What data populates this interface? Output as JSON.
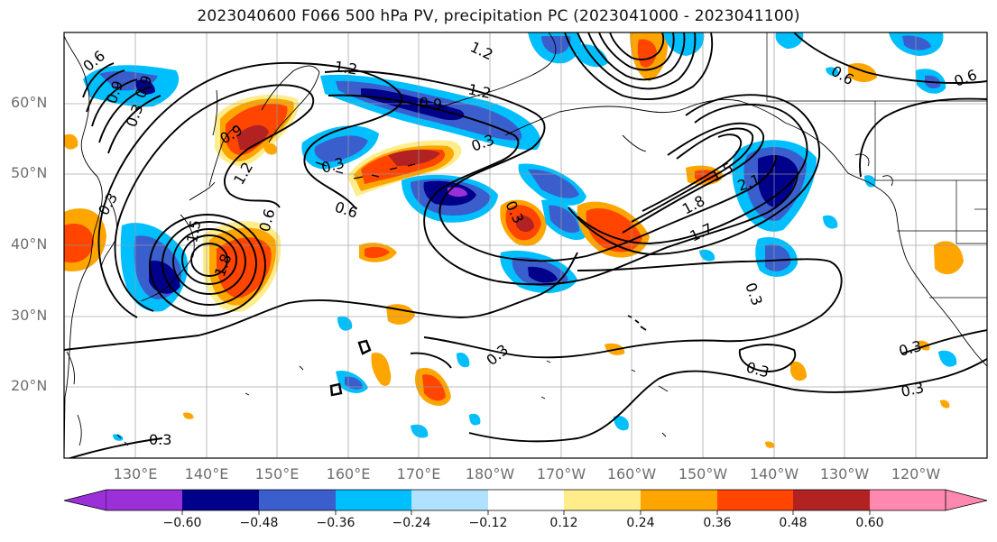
{
  "title": "2023040600 F066 500 hPa PV, precipitation PC (2023041000 - 2023041100)",
  "lat_labels": [
    "60°N",
    "50°N",
    "40°N",
    "30°N",
    "20°N"
  ],
  "lon_labels": [
    "130°E",
    "140°E",
    "150°E",
    "160°E",
    "170°E",
    "180°W",
    "170°W",
    "160°W",
    "150°W",
    "140°W",
    "130°W",
    "120°W"
  ],
  "colorbar": {
    "ticks": [
      "−0.60",
      "−0.48",
      "−0.36",
      "−0.24",
      "−0.12",
      "0.12",
      "0.24",
      "0.36",
      "0.48",
      "0.60"
    ],
    "colors": [
      "#9b30d9",
      "#00008b",
      "#3a5fcd",
      "#00bfff",
      "#b0e2ff",
      "#ffffff",
      "#ffec8b",
      "#ffa500",
      "#ff4500",
      "#b22222",
      "#ff88b0"
    ]
  },
  "contour_labels": [
    "0.3",
    "0.6",
    "0.9",
    "1.2",
    "1.5",
    "1.8",
    "2.1"
  ],
  "contour_instances": [
    "1.2",
    "1.2",
    "1.2",
    "0.9",
    "0.9",
    "0.3",
    "0.3",
    "0.6",
    "0.6",
    "0.3",
    "0.3",
    "1.2",
    "0.6",
    "0.3",
    "0.3",
    "0.3",
    "0.3",
    "0.3",
    "1.8",
    "1.5",
    "2.1",
    "1.7",
    "0.6",
    "0.6",
    "0.3",
    "0.3",
    "0.9",
    "0.9",
    "1.5",
    "1.8"
  ],
  "map_extent": {
    "lon_min": "120°E",
    "lon_max": "110°W",
    "lat_min": "10°N",
    "lat_max": "70°N"
  },
  "shading_colors": {
    "neg_strong": "#00008b",
    "neg_mid": "#3a5fcd",
    "neg_light": "#00bfff",
    "neg_pale": "#b0e2ff",
    "neg_extreme": "#9b30d9",
    "pos_pale": "#ffec8b",
    "pos_light": "#ffa500",
    "pos_mid": "#ff4500",
    "pos_strong": "#b22222"
  }
}
